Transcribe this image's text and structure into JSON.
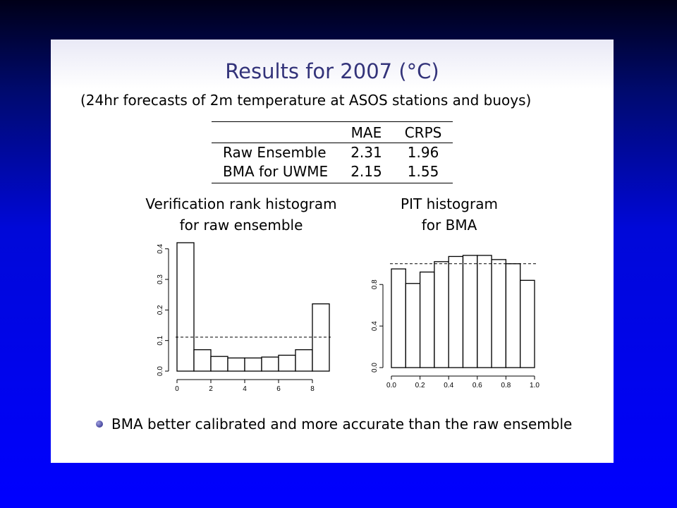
{
  "slide": {
    "title": "Results for 2007 (°C)",
    "subtitle": "(24hr forecasts of 2m temperature at ASOS stations and buoys)",
    "bullet": "BMA better calibrated and more accurate than the raw ensemble"
  },
  "table": {
    "columns": [
      "",
      "MAE",
      "CRPS"
    ],
    "rows": [
      {
        "label": "Raw Ensemble",
        "mae": "2.31",
        "crps": "1.96"
      },
      {
        "label": "BMA for UWME",
        "mae": "2.15",
        "crps": "1.55"
      }
    ]
  },
  "chart_data": [
    {
      "type": "bar",
      "title": "Verification rank histogram\nfor raw ensemble",
      "title_lines": [
        "Verification rank histogram",
        "for raw ensemble"
      ],
      "bin_edges": [
        0,
        1,
        2,
        3,
        4,
        5,
        6,
        7,
        8,
        9
      ],
      "values": [
        0.42,
        0.07,
        0.048,
        0.043,
        0.043,
        0.046,
        0.052,
        0.07,
        0.22
      ],
      "reference_line": 0.111,
      "xlim": [
        0,
        9
      ],
      "ylim": [
        0,
        0.42
      ],
      "x_ticks": [
        0,
        2,
        4,
        6,
        8
      ],
      "y_ticks": [
        0.0,
        0.1,
        0.2,
        0.3,
        0.4
      ],
      "y_tick_labels": [
        "0.0",
        "0.1",
        "0.2",
        "0.3",
        "0.4"
      ],
      "grid": false
    },
    {
      "type": "bar",
      "title": "PIT histogram\nfor BMA",
      "title_lines": [
        "PIT histogram",
        "for BMA"
      ],
      "bin_edges": [
        0.0,
        0.1,
        0.2,
        0.3,
        0.4,
        0.5,
        0.6,
        0.7,
        0.8,
        0.9,
        1.0
      ],
      "values": [
        0.95,
        0.81,
        0.92,
        1.02,
        1.07,
        1.08,
        1.08,
        1.04,
        1.0,
        0.84
      ],
      "reference_line": 1.0,
      "xlim": [
        0.0,
        1.0
      ],
      "ylim": [
        0.0,
        1.08
      ],
      "x_ticks": [
        0.0,
        0.2,
        0.4,
        0.6,
        0.8,
        1.0
      ],
      "x_tick_labels": [
        "0.0",
        "0.2",
        "0.4",
        "0.6",
        "0.8",
        "1.0"
      ],
      "y_ticks": [
        0.0,
        0.4,
        0.8
      ],
      "y_tick_labels": [
        "0.0",
        "0.4",
        "0.8"
      ],
      "grid": false
    }
  ]
}
